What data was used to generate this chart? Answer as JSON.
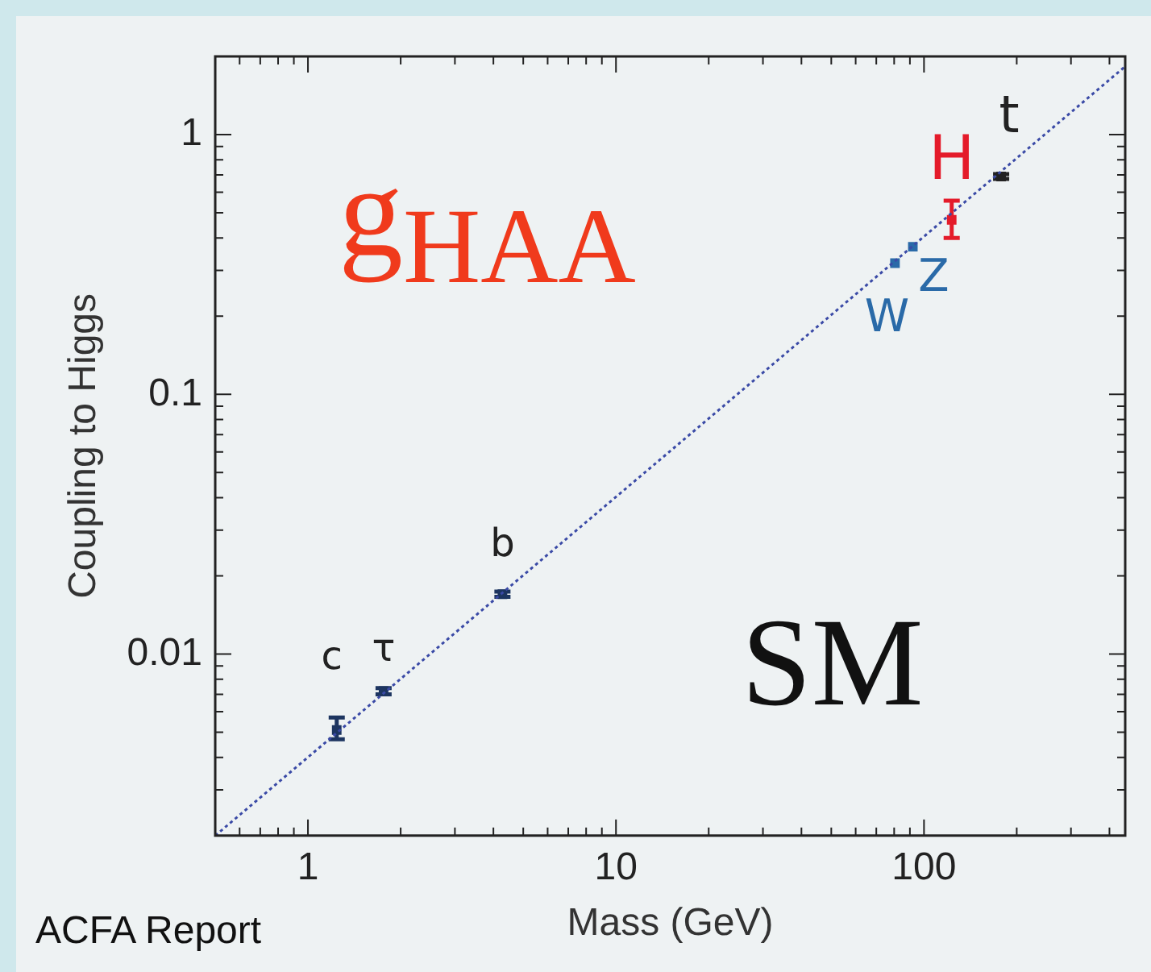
{
  "chart_data": {
    "type": "scatter",
    "xlabel": "Mass (GeV)",
    "ylabel": "Coupling to Higgs",
    "log": "xy",
    "xlim": [
      0.5,
      450
    ],
    "ylim": [
      0.002,
      2
    ],
    "xticks": [
      {
        "value": 0.5,
        "label": null
      },
      {
        "value": 0.6,
        "label": null
      },
      {
        "value": 0.7,
        "label": null
      },
      {
        "value": 0.8,
        "label": null
      },
      {
        "value": 0.9,
        "label": null
      },
      1,
      {
        "value": 2,
        "label": null
      },
      {
        "value": 3,
        "label": null
      },
      {
        "value": 4,
        "label": null
      },
      {
        "value": 5,
        "label": null
      },
      {
        "value": 6,
        "label": null
      },
      {
        "value": 7,
        "label": null
      },
      {
        "value": 8,
        "label": null
      },
      {
        "value": 9,
        "label": null
      },
      10,
      {
        "value": 20,
        "label": null
      },
      {
        "value": 30,
        "label": null
      },
      {
        "value": 40,
        "label": null
      },
      {
        "value": 50,
        "label": null
      },
      {
        "value": 60,
        "label": null
      },
      {
        "value": 70,
        "label": null
      },
      {
        "value": 80,
        "label": null
      },
      {
        "value": 90,
        "label": null
      },
      100,
      {
        "value": 200,
        "label": null
      },
      {
        "value": 300,
        "label": null
      },
      {
        "value": 400,
        "label": null
      }
    ],
    "yticks": [
      {
        "value": 0.003,
        "label": null
      },
      {
        "value": 0.004,
        "label": null
      },
      {
        "value": 0.005,
        "label": null
      },
      {
        "value": 0.006,
        "label": null
      },
      {
        "value": 0.007,
        "label": null
      },
      {
        "value": 0.008,
        "label": null
      },
      {
        "value": 0.009,
        "label": null
      },
      0.01,
      {
        "value": 0.02,
        "label": null
      },
      {
        "value": 0.03,
        "label": null
      },
      {
        "value": 0.04,
        "label": null
      },
      {
        "value": 0.05,
        "label": null
      },
      {
        "value": 0.06,
        "label": null
      },
      {
        "value": 0.07,
        "label": null
      },
      {
        "value": 0.08,
        "label": null
      },
      {
        "value": 0.09,
        "label": null
      },
      0.1,
      {
        "value": 0.2,
        "label": null
      },
      {
        "value": 0.3,
        "label": null
      },
      {
        "value": 0.4,
        "label": null
      },
      {
        "value": 0.5,
        "label": null
      },
      {
        "value": 0.6,
        "label": null
      },
      {
        "value": 0.7,
        "label": null
      },
      {
        "value": 0.8,
        "label": null
      },
      {
        "value": 0.9,
        "label": null
      },
      1
    ],
    "grid": false,
    "legend": false,
    "series": [
      {
        "type": "line",
        "line_style": "dotted",
        "color": "#3a4aa6",
        "x": [
          0.5,
          450
        ],
        "values": [
          0.002,
          1.83
        ]
      },
      {
        "marker": "square",
        "color": "#1d3560",
        "x": [
          1.24,
          1.76,
          4.28
        ],
        "values": [
          0.0051,
          0.0072,
          0.017
        ],
        "errors": [
          [
            0.0047,
            0.0057
          ],
          [
            0.007,
            0.0074
          ],
          [
            0.0166,
            0.0174
          ]
        ]
      },
      {
        "marker": "square",
        "color": "#2a6aa8",
        "x": [
          80.5,
          92
        ],
        "values": [
          0.32,
          0.37
        ]
      },
      {
        "marker": "square",
        "color": "#e41b2a",
        "x": [
          123
        ],
        "values": [
          0.47
        ],
        "errors": [
          [
            0.4,
            0.557
          ]
        ]
      },
      {
        "marker": "square",
        "color": "#222222",
        "x": [
          178
        ],
        "values": [
          0.69
        ],
        "errors": [
          [
            0.675,
            0.705
          ]
        ]
      }
    ],
    "annotations": [
      "g$_{HAA}$",
      "SM",
      "ACFA Report",
      {
        "text": "c",
        "x": 1.24,
        "y": 0.0051
      },
      {
        "text": "τ",
        "x": 1.76,
        "y": 0.0072
      },
      {
        "text": "b",
        "x": 4.28,
        "y": 0.017
      },
      {
        "text": "W",
        "x": 80.5,
        "y": 0.32
      },
      {
        "text": "Z",
        "x": 92,
        "y": 0.37
      },
      {
        "text": "H",
        "x": 123,
        "y": 0.47
      },
      {
        "text": "t",
        "x": 178,
        "y": 0.69
      }
    ]
  }
}
